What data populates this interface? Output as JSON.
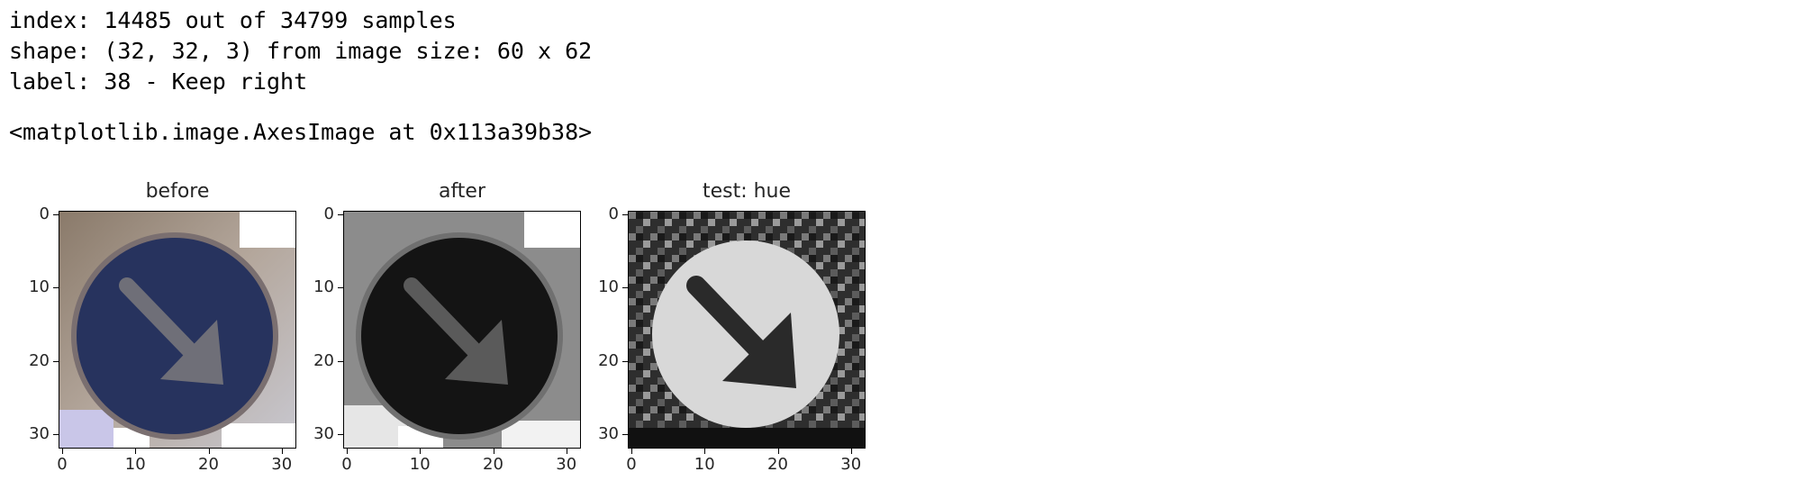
{
  "output": {
    "line1": "index: 14485 out of 34799 samples",
    "line2": "shape: (32, 32, 3) from image size: 60 x 62",
    "line3": "label: 38 - Keep right",
    "repr": "<matplotlib.image.AxesImage at 0x113a39b38>"
  },
  "figure": {
    "panels": [
      {
        "title": "before",
        "style": "color"
      },
      {
        "title": "after",
        "style": "gray"
      },
      {
        "title": "test: hue",
        "style": "inverted"
      }
    ],
    "xticks": [
      "0",
      "10",
      "20",
      "30"
    ],
    "yticks": [
      "0",
      "10",
      "20",
      "30"
    ]
  },
  "colors": {
    "sign_blue": "#27335e",
    "arrow_color": "#6f6f78",
    "gray_sign": "#141414",
    "gray_arrow": "#5a5a5a",
    "hue_circle": "#d8d8d8",
    "hue_arrow": "#2a2a2a"
  }
}
